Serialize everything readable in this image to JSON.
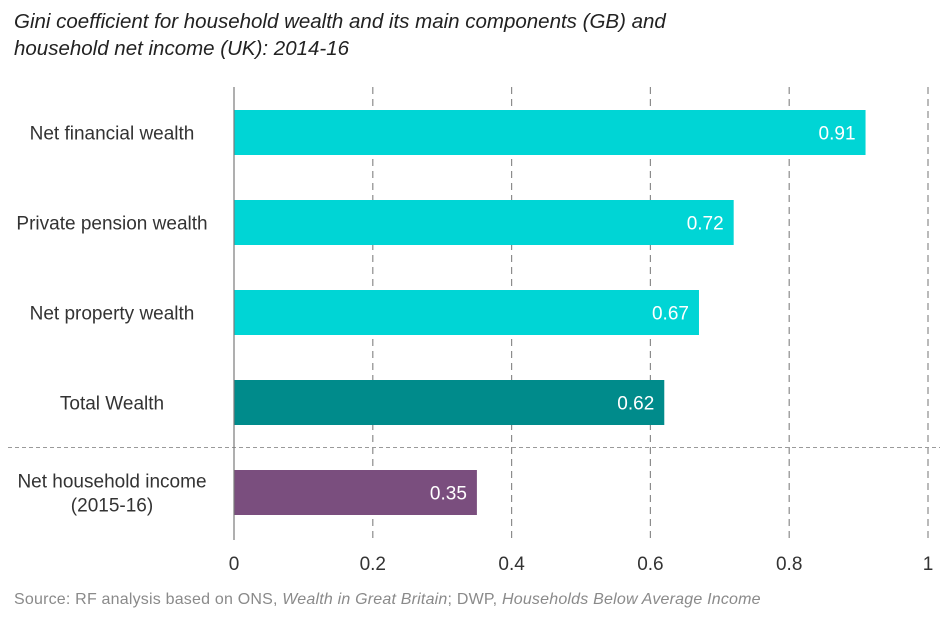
{
  "title": {
    "line1": "Gini coefficient for household wealth and its main components (GB) and",
    "line2": "household net income (UK): 2014-16"
  },
  "source": {
    "prefix": "Source: RF analysis based on ONS, ",
    "title1": "Wealth in Great Britain",
    "mid": "; DWP, ",
    "title2": "Households Below Average Income"
  },
  "chart_data": {
    "type": "bar",
    "orientation": "horizontal",
    "categories": [
      [
        "Net financial wealth"
      ],
      [
        "Private pension wealth"
      ],
      [
        "Net property wealth"
      ],
      [
        "Total Wealth"
      ],
      [
        "Net household income",
        "(2015-16)"
      ]
    ],
    "values": [
      0.91,
      0.72,
      0.67,
      0.62,
      0.35
    ],
    "value_labels": [
      "0.91",
      "0.72",
      "0.67",
      "0.62",
      "0.35"
    ],
    "colors": [
      "#00d5d5",
      "#00d5d5",
      "#00d5d5",
      "#008b8b",
      "#7a4e7e"
    ],
    "xlim": [
      0,
      1
    ],
    "xticks": [
      0,
      0.2,
      0.4,
      0.6,
      0.8,
      1
    ],
    "xtick_labels": [
      "0",
      "0.2",
      "0.4",
      "0.6",
      "0.8",
      "1"
    ],
    "grid": "vertical dashed",
    "separator_after_category": 3
  }
}
